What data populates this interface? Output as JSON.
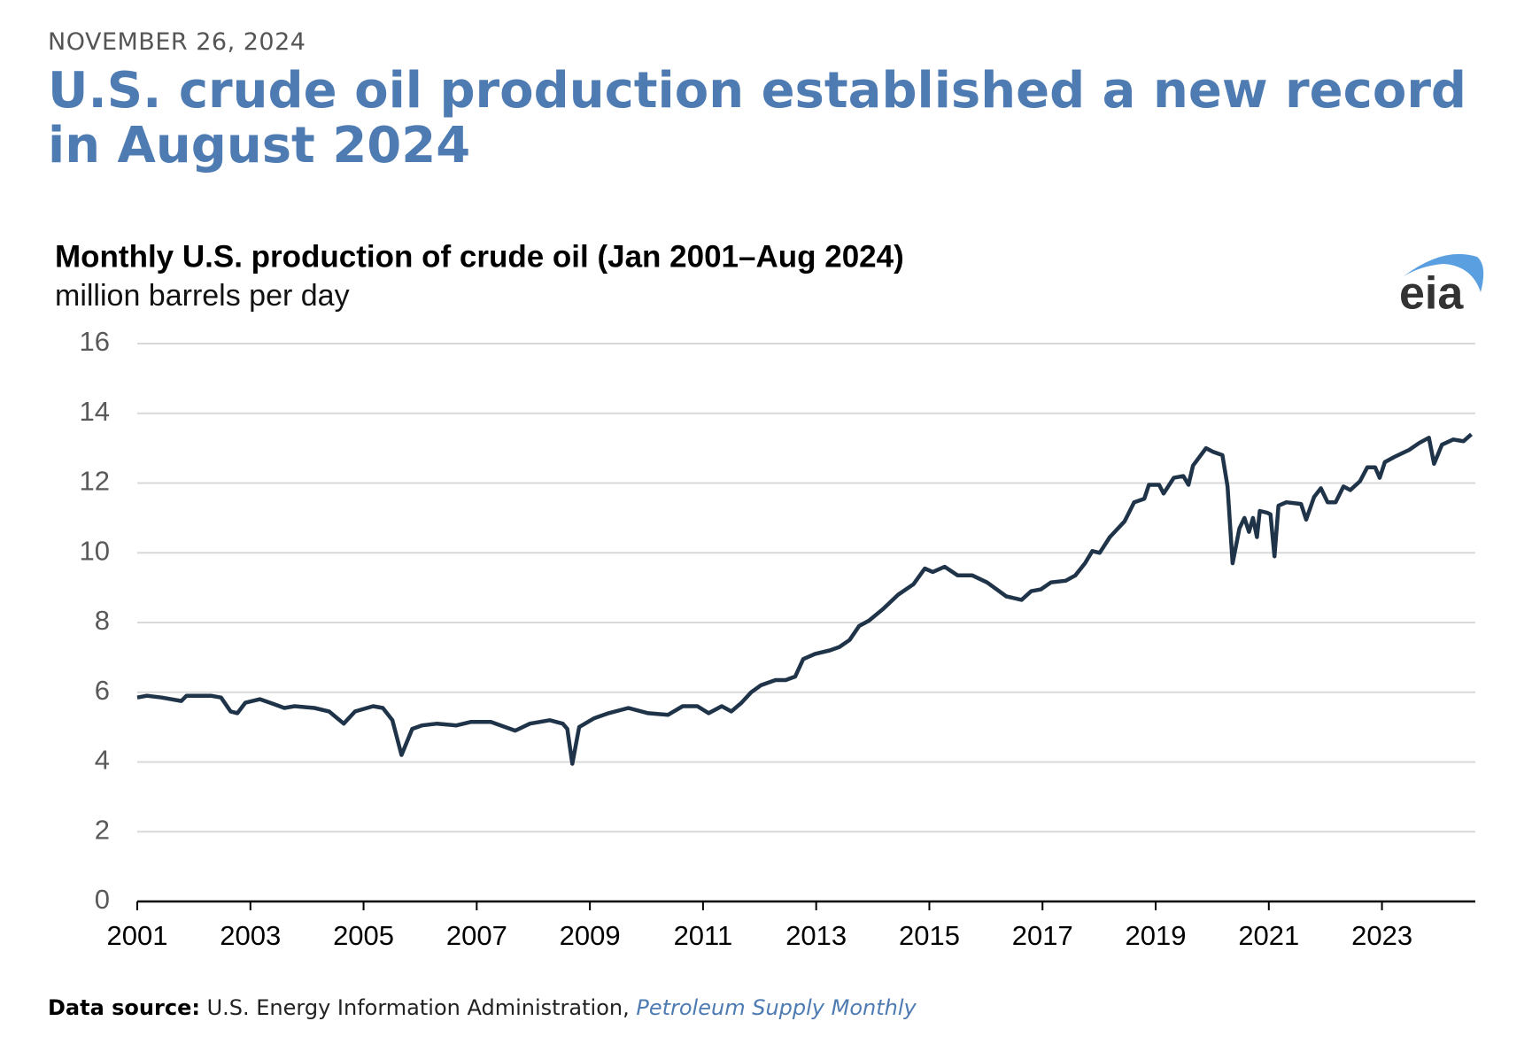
{
  "header": {
    "date": "NOVEMBER 26, 2024",
    "headline": "U.S. crude oil production established a new record in August 2024"
  },
  "logo": "eia",
  "chart_data": {
    "type": "line",
    "title": "Monthly U.S. production of crude oil (Jan 2001–Aug 2024)",
    "subtitle": "million barrels per day",
    "color": "#1f3349",
    "grid": true,
    "x": [
      2001.0,
      2001.17,
      2001.43,
      2001.78,
      2001.87,
      2002.3,
      2002.48,
      2002.65,
      2002.77,
      2002.91,
      2003.17,
      2003.43,
      2003.6,
      2003.78,
      2004.13,
      2004.39,
      2004.65,
      2004.85,
      2005.17,
      2005.34,
      2005.51,
      2005.67,
      2005.86,
      2006.03,
      2006.3,
      2006.64,
      2006.9,
      2007.25,
      2007.68,
      2007.94,
      2008.29,
      2008.52,
      2008.6,
      2008.69,
      2008.81,
      2009.07,
      2009.33,
      2009.68,
      2010.03,
      2010.38,
      2010.64,
      2010.9,
      2011.1,
      2011.33,
      2011.5,
      2011.68,
      2011.85,
      2012.02,
      2012.28,
      2012.46,
      2012.63,
      2012.77,
      2012.98,
      2013.24,
      2013.41,
      2013.59,
      2013.76,
      2013.93,
      2014.19,
      2014.45,
      2014.72,
      2014.92,
      2015.06,
      2015.27,
      2015.5,
      2015.76,
      2016.02,
      2016.19,
      2016.36,
      2016.63,
      2016.8,
      2016.97,
      2017.15,
      2017.41,
      2017.58,
      2017.75,
      2017.88,
      2018.01,
      2018.19,
      2018.45,
      2018.62,
      2018.8,
      2018.88,
      2019.06,
      2019.14,
      2019.32,
      2019.49,
      2019.58,
      2019.66,
      2019.89,
      2020.01,
      2020.18,
      2020.27,
      2020.36,
      2020.48,
      2020.57,
      2020.65,
      2020.72,
      2020.79,
      2020.84,
      2020.97,
      2021.03,
      2021.1,
      2021.17,
      2021.31,
      2021.57,
      2021.66,
      2021.8,
      2021.92,
      2022.04,
      2022.18,
      2022.32,
      2022.44,
      2022.61,
      2022.74,
      2022.88,
      2022.96,
      2023.05,
      2023.22,
      2023.48,
      2023.66,
      2023.83,
      2023.92,
      2024.06,
      2024.26,
      2024.44,
      2024.58
    ],
    "values": [
      5.85,
      5.9,
      5.85,
      5.75,
      5.9,
      5.9,
      5.85,
      5.45,
      5.4,
      5.7,
      5.8,
      5.65,
      5.55,
      5.6,
      5.55,
      5.45,
      5.1,
      5.45,
      5.6,
      5.55,
      5.2,
      4.2,
      4.95,
      5.05,
      5.1,
      5.05,
      5.15,
      5.15,
      4.9,
      5.1,
      5.2,
      5.1,
      4.95,
      3.95,
      5.0,
      5.25,
      5.4,
      5.55,
      5.4,
      5.35,
      5.6,
      5.6,
      5.4,
      5.6,
      5.45,
      5.7,
      6.0,
      6.2,
      6.35,
      6.35,
      6.45,
      6.95,
      7.1,
      7.2,
      7.3,
      7.5,
      7.9,
      8.05,
      8.4,
      8.8,
      9.1,
      9.55,
      9.45,
      9.6,
      9.35,
      9.35,
      9.15,
      8.95,
      8.75,
      8.65,
      8.9,
      8.95,
      9.15,
      9.2,
      9.35,
      9.7,
      10.05,
      10.0,
      10.45,
      10.9,
      11.45,
      11.55,
      11.95,
      11.95,
      11.7,
      12.15,
      12.2,
      11.95,
      12.5,
      13.0,
      12.9,
      12.8,
      11.9,
      9.7,
      10.7,
      11.0,
      10.6,
      11.0,
      10.45,
      11.2,
      11.15,
      11.1,
      9.9,
      11.35,
      11.45,
      11.4,
      10.95,
      11.6,
      11.85,
      11.45,
      11.45,
      11.9,
      11.8,
      12.05,
      12.45,
      12.45,
      12.15,
      12.6,
      12.75,
      12.95,
      13.15,
      13.3,
      12.55,
      13.1,
      13.25,
      13.2,
      13.4
    ],
    "xlim": [
      2001,
      2024.65
    ],
    "xticks": [
      2001,
      2003,
      2005,
      2007,
      2009,
      2011,
      2013,
      2015,
      2017,
      2019,
      2021,
      2023
    ],
    "ylim": [
      0,
      16
    ],
    "yticks": [
      0,
      2,
      4,
      6,
      8,
      10,
      12,
      14,
      16
    ],
    "source": {
      "label": "Data source:",
      "text": "U.S. Energy Information Administration,",
      "publication": "Petroleum Supply Monthly"
    }
  }
}
